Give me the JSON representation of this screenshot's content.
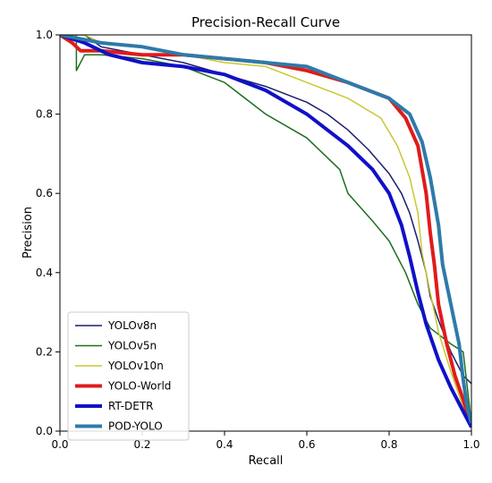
{
  "chart_data": {
    "type": "line",
    "title": "Precision-Recall Curve",
    "xlabel": "Recall",
    "ylabel": "Precision",
    "xlim": [
      0,
      1
    ],
    "ylim": [
      0,
      1
    ],
    "xticks": [
      "0.0",
      "0.2",
      "0.4",
      "0.6",
      "0.8",
      "1.0"
    ],
    "yticks": [
      "0.0",
      "0.2",
      "0.4",
      "0.6",
      "0.8",
      "1.0"
    ],
    "grid": false,
    "legend_position": "lower-left",
    "series": [
      {
        "name": "YOLOv8n",
        "color": "#1a1f6e",
        "width": 1.5,
        "points": [
          [
            0,
            1.0
          ],
          [
            0.06,
            1.0
          ],
          [
            0.1,
            0.97
          ],
          [
            0.2,
            0.95
          ],
          [
            0.3,
            0.93
          ],
          [
            0.4,
            0.9
          ],
          [
            0.5,
            0.87
          ],
          [
            0.6,
            0.83
          ],
          [
            0.65,
            0.8
          ],
          [
            0.7,
            0.76
          ],
          [
            0.75,
            0.71
          ],
          [
            0.8,
            0.65
          ],
          [
            0.83,
            0.6
          ],
          [
            0.85,
            0.55
          ],
          [
            0.87,
            0.48
          ],
          [
            0.89,
            0.4
          ],
          [
            0.9,
            0.34
          ],
          [
            0.92,
            0.28
          ],
          [
            0.95,
            0.2
          ],
          [
            0.98,
            0.14
          ],
          [
            1.0,
            0.12
          ]
        ]
      },
      {
        "name": "YOLOv5n",
        "color": "#1e6e1e",
        "width": 1.5,
        "points": [
          [
            0,
            1.0
          ],
          [
            0.04,
            1.0
          ],
          [
            0.04,
            0.91
          ],
          [
            0.06,
            0.95
          ],
          [
            0.1,
            0.95
          ],
          [
            0.2,
            0.94
          ],
          [
            0.3,
            0.92
          ],
          [
            0.4,
            0.88
          ],
          [
            0.5,
            0.8
          ],
          [
            0.6,
            0.74
          ],
          [
            0.68,
            0.66
          ],
          [
            0.7,
            0.6
          ],
          [
            0.76,
            0.53
          ],
          [
            0.8,
            0.48
          ],
          [
            0.84,
            0.4
          ],
          [
            0.87,
            0.32
          ],
          [
            0.9,
            0.26
          ],
          [
            0.95,
            0.22
          ],
          [
            0.98,
            0.2
          ],
          [
            1.0,
            0.02
          ]
        ]
      },
      {
        "name": "YOLOv10n",
        "color": "#c8c832",
        "width": 1.5,
        "points": [
          [
            0,
            1.0
          ],
          [
            0.06,
            1.0
          ],
          [
            0.1,
            0.98
          ],
          [
            0.2,
            0.97
          ],
          [
            0.3,
            0.95
          ],
          [
            0.4,
            0.93
          ],
          [
            0.5,
            0.92
          ],
          [
            0.6,
            0.88
          ],
          [
            0.7,
            0.84
          ],
          [
            0.78,
            0.79
          ],
          [
            0.82,
            0.72
          ],
          [
            0.85,
            0.64
          ],
          [
            0.87,
            0.55
          ],
          [
            0.88,
            0.45
          ],
          [
            0.9,
            0.35
          ],
          [
            0.92,
            0.25
          ],
          [
            0.95,
            0.15
          ],
          [
            0.98,
            0.06
          ],
          [
            1.0,
            0.02
          ]
        ]
      },
      {
        "name": "YOLO-World",
        "color": "#e01b1b",
        "width": 4,
        "points": [
          [
            0,
            1.0
          ],
          [
            0.03,
            0.98
          ],
          [
            0.05,
            0.96
          ],
          [
            0.1,
            0.96
          ],
          [
            0.2,
            0.95
          ],
          [
            0.3,
            0.95
          ],
          [
            0.4,
            0.94
          ],
          [
            0.5,
            0.93
          ],
          [
            0.6,
            0.91
          ],
          [
            0.7,
            0.88
          ],
          [
            0.8,
            0.84
          ],
          [
            0.84,
            0.79
          ],
          [
            0.87,
            0.72
          ],
          [
            0.89,
            0.6
          ],
          [
            0.9,
            0.5
          ],
          [
            0.91,
            0.42
          ],
          [
            0.92,
            0.32
          ],
          [
            0.94,
            0.22
          ],
          [
            0.96,
            0.14
          ],
          [
            0.98,
            0.08
          ],
          [
            1.0,
            0.01
          ]
        ]
      },
      {
        "name": "RT-DETR",
        "color": "#1010c8",
        "width": 4,
        "points": [
          [
            0,
            1.0
          ],
          [
            0.06,
            0.98
          ],
          [
            0.12,
            0.95
          ],
          [
            0.2,
            0.93
          ],
          [
            0.3,
            0.92
          ],
          [
            0.4,
            0.9
          ],
          [
            0.5,
            0.86
          ],
          [
            0.6,
            0.8
          ],
          [
            0.7,
            0.72
          ],
          [
            0.76,
            0.66
          ],
          [
            0.8,
            0.6
          ],
          [
            0.83,
            0.52
          ],
          [
            0.85,
            0.44
          ],
          [
            0.87,
            0.35
          ],
          [
            0.89,
            0.27
          ],
          [
            0.92,
            0.18
          ],
          [
            0.95,
            0.11
          ],
          [
            0.98,
            0.05
          ],
          [
            1.0,
            0.01
          ]
        ]
      },
      {
        "name": "POD-YOLO",
        "color": "#2e7aaa",
        "width": 4,
        "points": [
          [
            0,
            1.0
          ],
          [
            0.1,
            0.98
          ],
          [
            0.2,
            0.97
          ],
          [
            0.3,
            0.95
          ],
          [
            0.4,
            0.94
          ],
          [
            0.5,
            0.93
          ],
          [
            0.6,
            0.92
          ],
          [
            0.7,
            0.88
          ],
          [
            0.8,
            0.84
          ],
          [
            0.85,
            0.8
          ],
          [
            0.88,
            0.73
          ],
          [
            0.9,
            0.64
          ],
          [
            0.92,
            0.52
          ],
          [
            0.93,
            0.42
          ],
          [
            0.95,
            0.32
          ],
          [
            0.97,
            0.22
          ],
          [
            0.98,
            0.13
          ],
          [
            0.99,
            0.06
          ],
          [
            1.0,
            0.02
          ]
        ]
      }
    ]
  }
}
